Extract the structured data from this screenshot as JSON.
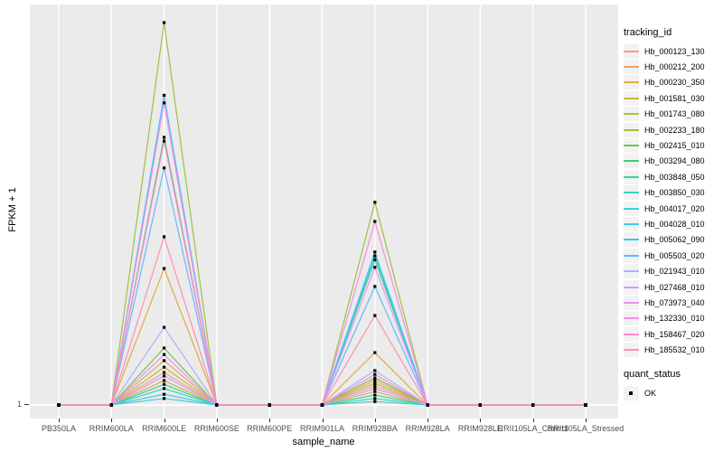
{
  "figure": {
    "background": "#FFFFFF",
    "panel_background": "#EBEBEB",
    "gridline_color": "#FFFFFF",
    "point_color": "#000000"
  },
  "axes": {
    "y": {
      "title": "FPKM + 1",
      "tick_labels": [
        "1"
      ]
    },
    "x": {
      "title": "sample_name"
    }
  },
  "legend": {
    "tracking": {
      "title": "tracking_id"
    },
    "quant": {
      "title": "quant_status",
      "items": [
        {
          "label": "OK"
        }
      ]
    }
  },
  "chart_data": {
    "type": "line",
    "title": "",
    "xlabel": "sample_name",
    "ylabel": "FPKM + 1",
    "y_axis_note": "log-like scale; only the tick '1' is labeled at the baseline. Series values below are peak heights as fraction of panel height above the baseline (0 = FPKM+1 of 1).",
    "grid": "vertical white majors at each category, horizontal white line at y=1",
    "legend_position": "right",
    "categories": [
      "PB350LA",
      "RRIM600LA",
      "RRIM600LE",
      "RRIM600SE",
      "RRIM600PE",
      "RRIM901LA",
      "RRIM928BA",
      "RRIM928LA",
      "RRIM928LE",
      "RRII105LA_Control",
      "RRII105LA_Stressed"
    ],
    "series": [
      {
        "name": "Hb_000123_130",
        "color": "#FA9892",
        "values": [
          0,
          0,
          0.085,
          0,
          0,
          0,
          0.05,
          0,
          0,
          0,
          0
        ]
      },
      {
        "name": "Hb_000212_200",
        "color": "#EFA265",
        "values": [
          0,
          0,
          0.116,
          0,
          0,
          0,
          0.064,
          0,
          0,
          0,
          0
        ]
      },
      {
        "name": "Hb_000230_350",
        "color": "#E2AC40",
        "values": [
          0,
          0,
          0.357,
          0,
          0,
          0,
          0.137,
          0,
          0,
          0,
          0
        ]
      },
      {
        "name": "Hb_001581_030",
        "color": "#D0B440",
        "values": [
          0,
          0,
          0.064,
          0,
          0,
          0,
          0.035,
          0,
          0,
          0,
          0
        ]
      },
      {
        "name": "Hb_001743_080",
        "color": "#BABC40",
        "values": [
          0,
          0,
          0.099,
          0,
          0,
          0,
          0.057,
          0,
          0,
          0,
          0
        ]
      },
      {
        "name": "Hb_002233_180",
        "color": "#9DC240",
        "values": [
          0,
          0,
          1.0,
          0,
          0,
          0,
          0.53,
          0,
          0,
          0,
          0
        ]
      },
      {
        "name": "Hb_002415_010",
        "color": "#6BC840",
        "values": [
          0,
          0,
          0.149,
          0,
          0,
          0,
          0.071,
          0,
          0,
          0,
          0
        ]
      },
      {
        "name": "Hb_003294_080",
        "color": "#40CC7A",
        "values": [
          0,
          0,
          0.7,
          0,
          0,
          0,
          0.38,
          0,
          0,
          0,
          0
        ]
      },
      {
        "name": "Hb_003848_050",
        "color": "#40CF9E",
        "values": [
          0,
          0,
          0.054,
          0,
          0,
          0,
          0.026,
          0,
          0,
          0,
          0
        ]
      },
      {
        "name": "Hb_003850_030",
        "color": "#40D0BA",
        "values": [
          0,
          0,
          0.043,
          0,
          0,
          0,
          0.017,
          0,
          0,
          0,
          0
        ]
      },
      {
        "name": "Hb_004017_020",
        "color": "#40CFD3",
        "values": [
          0,
          0,
          0.017,
          0,
          0,
          0,
          0.009,
          0,
          0,
          0,
          0
        ]
      },
      {
        "name": "Hb_004028_010",
        "color": "#40CBE8",
        "values": [
          0,
          0,
          0.028,
          0,
          0,
          0,
          0.4,
          0,
          0,
          0,
          0
        ]
      },
      {
        "name": "Hb_005062_090",
        "color": "#40C4F8",
        "values": [
          0,
          0,
          0.81,
          0,
          0,
          0,
          0.39,
          0,
          0,
          0,
          0
        ]
      },
      {
        "name": "Hb_005503_020",
        "color": "#67B9FF",
        "values": [
          0,
          0,
          0.62,
          0,
          0,
          0,
          0.31,
          0,
          0,
          0,
          0
        ]
      },
      {
        "name": "Hb_021943_010",
        "color": "#B0ACFF",
        "values": [
          0,
          0,
          0.203,
          0,
          0,
          0,
          0.09,
          0,
          0,
          0,
          0
        ]
      },
      {
        "name": "Hb_027468_010",
        "color": "#D59DFF",
        "values": [
          0,
          0,
          0.076,
          0,
          0,
          0,
          0.043,
          0,
          0,
          0,
          0
        ]
      },
      {
        "name": "Hb_073973_040",
        "color": "#ED90F6",
        "values": [
          0,
          0,
          0.132,
          0,
          0,
          0,
          0.36,
          0,
          0,
          0,
          0
        ]
      },
      {
        "name": "Hb_132330_010",
        "color": "#FB89E4",
        "values": [
          0,
          0,
          0.79,
          0,
          0,
          0,
          0.48,
          0,
          0,
          0,
          0
        ]
      },
      {
        "name": "Hb_158467_020",
        "color": "#FF89CD",
        "values": [
          0,
          0,
          0.69,
          0,
          0,
          0,
          0.08,
          0,
          0,
          0,
          0
        ]
      },
      {
        "name": "Hb_185532_010",
        "color": "#FF8FB2",
        "values": [
          0,
          0,
          0.44,
          0,
          0,
          0,
          0.234,
          0,
          0,
          0,
          0
        ]
      }
    ]
  }
}
